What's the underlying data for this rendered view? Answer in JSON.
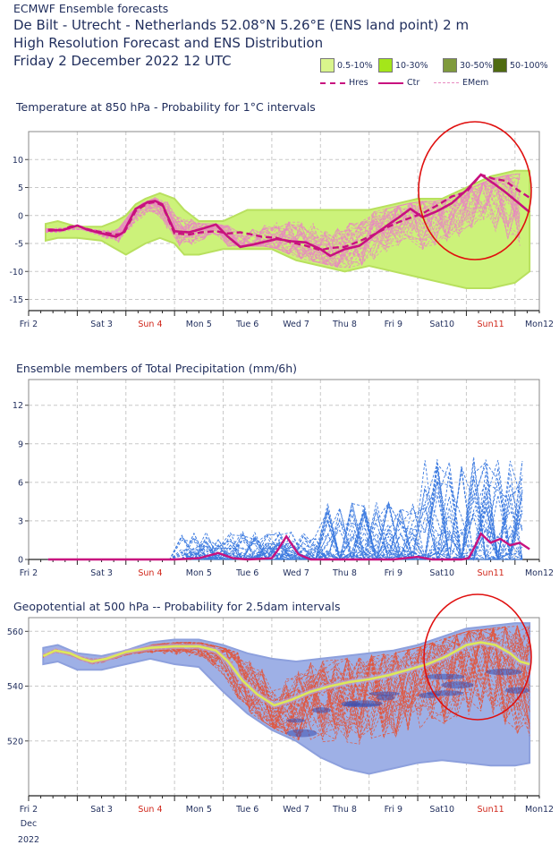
{
  "header": {
    "line1": "ECMWF Ensemble forecasts",
    "line2": "De Bilt - Utrecht - Netherlands 52.08°N 5.26°E (ENS land point) 2 m",
    "line3": "High Resolution Forecast and ENS Distribution",
    "line4": "Friday  2 December 2022 12 UTC"
  },
  "legend": {
    "boxes": [
      {
        "label": "0.5-10%",
        "color": "#d9f58c"
      },
      {
        "label": "10-30%",
        "color": "#a4e61a"
      },
      {
        "label": "30-50%",
        "color": "#7f9a3c"
      },
      {
        "label": "50-100%",
        "color": "#4f6b10"
      }
    ],
    "lines": [
      {
        "label": "Hres",
        "color": "#c8117f",
        "style": "dashed"
      },
      {
        "label": "Ctr",
        "color": "#c8117f",
        "style": "solid"
      },
      {
        "label": "EMem",
        "color": "#e889c0",
        "style": "thin-dashed"
      }
    ]
  },
  "x_labels": [
    {
      "label": "Fri 2",
      "weekend": false
    },
    {
      "label": "Sat 3",
      "weekend": false
    },
    {
      "label": "Sun 4",
      "weekend": true
    },
    {
      "label": "Mon 5",
      "weekend": false
    },
    {
      "label": "Tue 6",
      "weekend": false
    },
    {
      "label": "Wed 7",
      "weekend": false
    },
    {
      "label": "Thu 8",
      "weekend": false
    },
    {
      "label": "Fri 9",
      "weekend": false
    },
    {
      "label": "Sat10",
      "weekend": false
    },
    {
      "label": "Sun11",
      "weekend": true
    },
    {
      "label": "Mon12",
      "weekend": false
    }
  ],
  "x_date_note": [
    "Dec",
    "2022"
  ],
  "chart_data": [
    {
      "type": "line",
      "title": "Temperature at 850 hPa - Probability for 1°C intervals",
      "y_ticks": [
        10,
        5,
        0,
        -5,
        -10,
        -15
      ],
      "ylim": [
        -17,
        15
      ],
      "xlim_days": [
        0,
        10.5
      ],
      "colors": {
        "band": "#ccf27a",
        "member": "#e889c0",
        "ctr": "#c8117f",
        "hres": "#c8117f",
        "highlight": "#e0100f"
      },
      "band_upper": [
        [
          0.35,
          -1.5
        ],
        [
          0.6,
          -1
        ],
        [
          1.0,
          -2
        ],
        [
          1.5,
          -2
        ],
        [
          1.8,
          -1
        ],
        [
          2.0,
          0
        ],
        [
          2.2,
          2
        ],
        [
          2.4,
          3
        ],
        [
          2.7,
          4
        ],
        [
          3.0,
          3
        ],
        [
          3.2,
          1
        ],
        [
          3.5,
          -1
        ],
        [
          4.0,
          -1
        ],
        [
          4.5,
          1
        ],
        [
          5.0,
          1
        ],
        [
          5.5,
          1
        ],
        [
          6.0,
          1
        ],
        [
          6.5,
          1
        ],
        [
          7.0,
          1
        ],
        [
          7.5,
          2
        ],
        [
          8.0,
          3
        ],
        [
          8.5,
          3
        ],
        [
          9.0,
          5
        ],
        [
          9.5,
          7
        ],
        [
          10.0,
          8
        ],
        [
          10.3,
          8
        ]
      ],
      "band_lower": [
        [
          0.35,
          -4.5
        ],
        [
          0.6,
          -4
        ],
        [
          1.0,
          -4
        ],
        [
          1.5,
          -4.5
        ],
        [
          1.8,
          -6
        ],
        [
          2.0,
          -7
        ],
        [
          2.2,
          -6
        ],
        [
          2.4,
          -5
        ],
        [
          2.7,
          -4
        ],
        [
          3.0,
          -5
        ],
        [
          3.2,
          -7
        ],
        [
          3.5,
          -7
        ],
        [
          4.0,
          -6
        ],
        [
          4.5,
          -6
        ],
        [
          5.0,
          -6
        ],
        [
          5.5,
          -8
        ],
        [
          6.0,
          -9
        ],
        [
          6.5,
          -10
        ],
        [
          7.0,
          -9
        ],
        [
          7.5,
          -10
        ],
        [
          8.0,
          -11
        ],
        [
          8.5,
          -12
        ],
        [
          9.0,
          -13
        ],
        [
          9.5,
          -13
        ],
        [
          10.0,
          -12
        ],
        [
          10.3,
          -10
        ]
      ],
      "series": [
        {
          "name": "Ctr",
          "points": [
            [
              0.4,
              -2.7
            ],
            [
              0.7,
              -2.6
            ],
            [
              0.85,
              -2.2
            ],
            [
              1.0,
              -1.8
            ],
            [
              1.2,
              -2.5
            ],
            [
              1.5,
              -3.2
            ],
            [
              1.8,
              -3.8
            ],
            [
              1.95,
              -3.0
            ],
            [
              2.2,
              1.2
            ],
            [
              2.45,
              2.4
            ],
            [
              2.6,
              2.6
            ],
            [
              2.75,
              2.0
            ],
            [
              3.0,
              -2.8
            ],
            [
              3.3,
              -3.0
            ],
            [
              3.55,
              -2.4
            ],
            [
              3.85,
              -1.6
            ],
            [
              4.1,
              -3.8
            ],
            [
              4.35,
              -5.6
            ],
            [
              4.6,
              -5.2
            ],
            [
              4.8,
              -4.8
            ],
            [
              5.1,
              -4.2
            ],
            [
              5.4,
              -4.6
            ],
            [
              5.7,
              -4.8
            ],
            [
              6.0,
              -6.0
            ],
            [
              6.2,
              -7.2
            ],
            [
              6.5,
              -6.0
            ],
            [
              6.8,
              -5.4
            ],
            [
              7.1,
              -3.5
            ],
            [
              7.4,
              -1.6
            ],
            [
              7.6,
              -0.4
            ],
            [
              7.85,
              1.2
            ],
            [
              8.1,
              -0.3
            ],
            [
              8.4,
              0.8
            ],
            [
              8.7,
              2.2
            ],
            [
              9.0,
              4.5
            ],
            [
              9.3,
              7.3
            ],
            [
              9.55,
              5.8
            ],
            [
              9.8,
              4.2
            ],
            [
              10.05,
              2.4
            ],
            [
              10.3,
              0.6
            ]
          ]
        },
        {
          "name": "Hres",
          "points": [
            [
              0.4,
              -2.5
            ],
            [
              0.7,
              -2.6
            ],
            [
              0.85,
              -2.0
            ],
            [
              1.0,
              -1.8
            ],
            [
              1.2,
              -2.4
            ],
            [
              1.5,
              -3.0
            ],
            [
              1.8,
              -3.4
            ],
            [
              1.95,
              -3.3
            ],
            [
              2.2,
              0.8
            ],
            [
              2.45,
              2.2
            ],
            [
              2.6,
              2.4
            ],
            [
              2.75,
              1.8
            ],
            [
              3.0,
              -3.2
            ],
            [
              3.3,
              -3.4
            ],
            [
              3.55,
              -3.0
            ],
            [
              3.85,
              -2.8
            ],
            [
              4.1,
              -3.2
            ],
            [
              4.35,
              -3.0
            ],
            [
              4.6,
              -3.4
            ],
            [
              4.8,
              -3.8
            ],
            [
              5.1,
              -4.0
            ],
            [
              5.4,
              -4.8
            ],
            [
              5.7,
              -5.4
            ],
            [
              6.0,
              -6.2
            ],
            [
              6.2,
              -5.8
            ],
            [
              6.5,
              -5.6
            ],
            [
              6.8,
              -4.6
            ],
            [
              7.1,
              -3.4
            ],
            [
              7.4,
              -2.0
            ],
            [
              7.6,
              -1.2
            ],
            [
              7.85,
              -0.4
            ],
            [
              8.1,
              0.4
            ],
            [
              8.4,
              1.8
            ],
            [
              8.7,
              3.4
            ],
            [
              9.0,
              4.2
            ],
            [
              9.3,
              7.3
            ],
            [
              9.55,
              6.6
            ],
            [
              9.8,
              6.2
            ],
            [
              10.05,
              4.6
            ],
            [
              10.3,
              3.2
            ]
          ]
        }
      ]
    },
    {
      "type": "line",
      "title": "Ensemble members of Total Precipitation (mm/6h)",
      "y_ticks": [
        12,
        9,
        6,
        3,
        0
      ],
      "ylim": [
        0,
        14
      ],
      "xlim_days": [
        0,
        10.5
      ],
      "colors": {
        "member": "#3d7be0",
        "ctr": "#c8117f"
      },
      "series": [
        {
          "name": "Ctr",
          "points": [
            [
              0.4,
              0
            ],
            [
              3.0,
              0
            ],
            [
              3.5,
              0.1
            ],
            [
              3.9,
              0.5
            ],
            [
              4.2,
              0.1
            ],
            [
              4.5,
              0
            ],
            [
              5.0,
              0.1
            ],
            [
              5.1,
              0.6
            ],
            [
              5.3,
              1.8
            ],
            [
              5.55,
              0.4
            ],
            [
              5.8,
              0
            ],
            [
              7.5,
              0
            ],
            [
              8.0,
              0.2
            ],
            [
              8.3,
              0
            ],
            [
              8.9,
              0
            ],
            [
              9.05,
              0.1
            ],
            [
              9.2,
              1.2
            ],
            [
              9.3,
              2.0
            ],
            [
              9.5,
              1.3
            ],
            [
              9.7,
              1.6
            ],
            [
              9.9,
              1.1
            ],
            [
              10.1,
              1.3
            ],
            [
              10.3,
              0.8
            ]
          ]
        }
      ]
    },
    {
      "type": "line",
      "title": "Geopotential at 500 hPa -- Probability for 2.5dam intervals",
      "y_ticks": [
        560,
        540,
        520
      ],
      "ylim": [
        500,
        565
      ],
      "xlim_days": [
        0,
        10.5
      ],
      "colors": {
        "band": "#9eb0e6",
        "member": "#e05840",
        "core": "#3a4fae",
        "ctr": "#dde85a",
        "highlight": "#e0100f"
      },
      "band_upper": [
        [
          0.3,
          554
        ],
        [
          0.6,
          555
        ],
        [
          1.0,
          552
        ],
        [
          1.5,
          551
        ],
        [
          2.0,
          553
        ],
        [
          2.5,
          556
        ],
        [
          3.0,
          557
        ],
        [
          3.5,
          557
        ],
        [
          4.0,
          555
        ],
        [
          4.5,
          552
        ],
        [
          5.0,
          550
        ],
        [
          5.5,
          549
        ],
        [
          6.0,
          550
        ],
        [
          6.5,
          551
        ],
        [
          7.0,
          552
        ],
        [
          7.5,
          553
        ],
        [
          8.0,
          555
        ],
        [
          8.5,
          558
        ],
        [
          9.0,
          561
        ],
        [
          9.5,
          562
        ],
        [
          10.0,
          563
        ],
        [
          10.3,
          563
        ]
      ],
      "band_lower": [
        [
          0.3,
          548
        ],
        [
          0.6,
          549
        ],
        [
          1.0,
          546
        ],
        [
          1.5,
          546
        ],
        [
          2.0,
          548
        ],
        [
          2.5,
          550
        ],
        [
          3.0,
          548
        ],
        [
          3.5,
          547
        ],
        [
          4.0,
          538
        ],
        [
          4.5,
          530
        ],
        [
          5.0,
          524
        ],
        [
          5.5,
          520
        ],
        [
          6.0,
          514
        ],
        [
          6.5,
          510
        ],
        [
          7.0,
          508
        ],
        [
          7.5,
          510
        ],
        [
          8.0,
          512
        ],
        [
          8.5,
          513
        ],
        [
          9.0,
          512
        ],
        [
          9.5,
          511
        ],
        [
          10.0,
          511
        ],
        [
          10.3,
          512
        ]
      ],
      "series": [
        {
          "name": "Ctr",
          "points": [
            [
              0.3,
              551
            ],
            [
              0.55,
              553
            ],
            [
              0.85,
              552
            ],
            [
              1.1,
              550
            ],
            [
              1.3,
              549
            ],
            [
              1.6,
              550
            ],
            [
              2.0,
              552.5
            ],
            [
              2.5,
              554
            ],
            [
              3.0,
              554.5
            ],
            [
              3.5,
              554.5
            ],
            [
              3.85,
              553
            ],
            [
              4.1,
              549
            ],
            [
              4.4,
              542
            ],
            [
              4.7,
              537
            ],
            [
              5.05,
              533
            ],
            [
              5.4,
              535
            ],
            [
              5.8,
              538
            ],
            [
              6.2,
              540
            ],
            [
              6.6,
              541.5
            ],
            [
              7.0,
              542.5
            ],
            [
              7.4,
              544
            ],
            [
              7.8,
              546
            ],
            [
              8.2,
              548
            ],
            [
              8.6,
              551
            ],
            [
              9.0,
              555
            ],
            [
              9.3,
              556
            ],
            [
              9.6,
              555
            ],
            [
              9.9,
              552
            ],
            [
              10.1,
              549
            ],
            [
              10.3,
              548
            ]
          ]
        }
      ]
    }
  ]
}
